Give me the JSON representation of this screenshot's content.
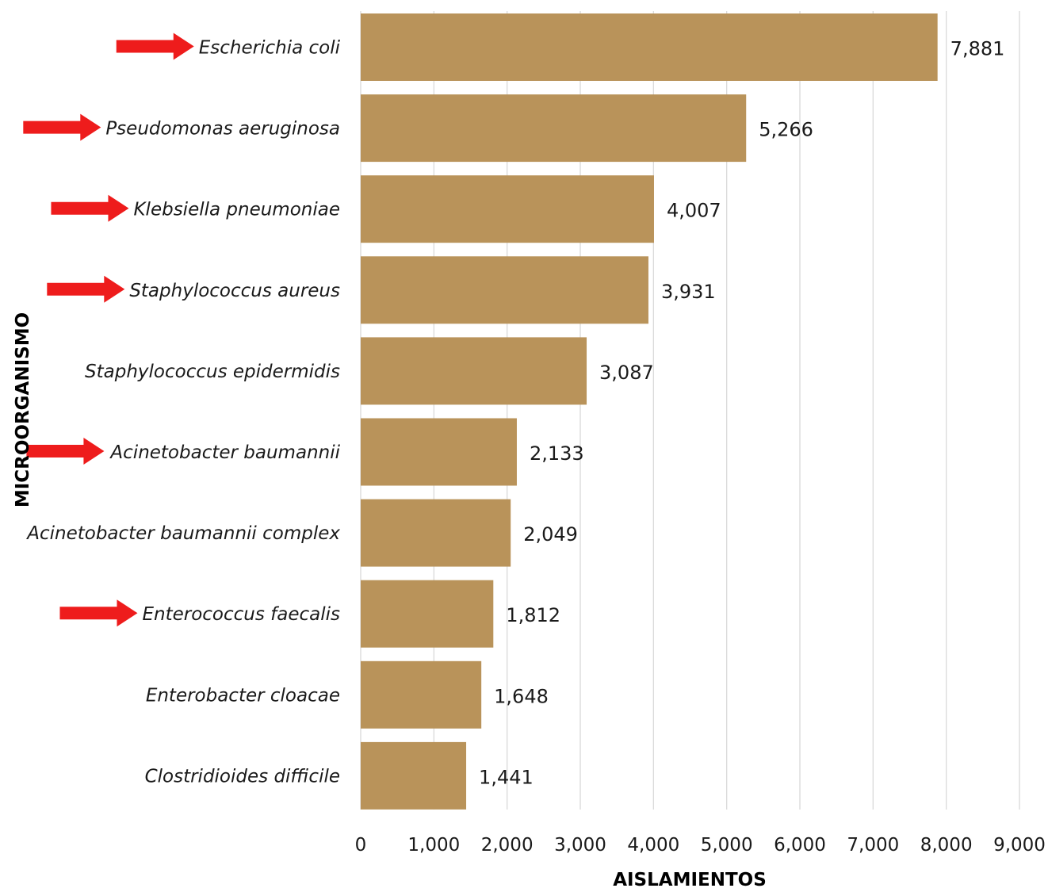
{
  "chart_data": {
    "type": "bar",
    "orientation": "horizontal",
    "xlabel": "AISLAMIENTOS",
    "ylabel": "MICROORGANISMO",
    "xlim": [
      0,
      9000
    ],
    "x_ticks": [
      0,
      1000,
      2000,
      3000,
      4000,
      5000,
      6000,
      7000,
      8000,
      9000
    ],
    "x_tick_labels": [
      "0",
      "1,000",
      "2,000",
      "3,000",
      "4,000",
      "5,000",
      "6,000",
      "7,000",
      "8,000",
      "9,000"
    ],
    "grid": true,
    "categories": [
      "Escherichia coli",
      "Pseudomonas aeruginosa",
      "Klebsiella pneumoniae",
      "Staphylococcus aureus",
      "Staphylococcus epidermidis",
      "Acinetobacter baumannii",
      "Acinetobacter baumannii complex",
      "Enterococcus faecalis",
      "Enterobacter cloacae",
      "Clostridioides difficile"
    ],
    "values": [
      7881,
      5266,
      4007,
      3931,
      3087,
      2133,
      2049,
      1812,
      1648,
      1441
    ],
    "value_labels": [
      "7,881",
      "5,266",
      "4,007",
      "3,931",
      "3,087",
      "2,133",
      "2,049",
      "1,812",
      "1,648",
      "1,441"
    ],
    "highlighted": [
      true,
      true,
      true,
      true,
      false,
      true,
      false,
      true,
      false,
      false
    ],
    "annotation": "red arrows point to highlighted microorganisms"
  },
  "colors": {
    "bar": "#b9935a",
    "arrow": "#ee1c1c",
    "grid": "#d9d9d9",
    "text": "#1a1a1a"
  }
}
